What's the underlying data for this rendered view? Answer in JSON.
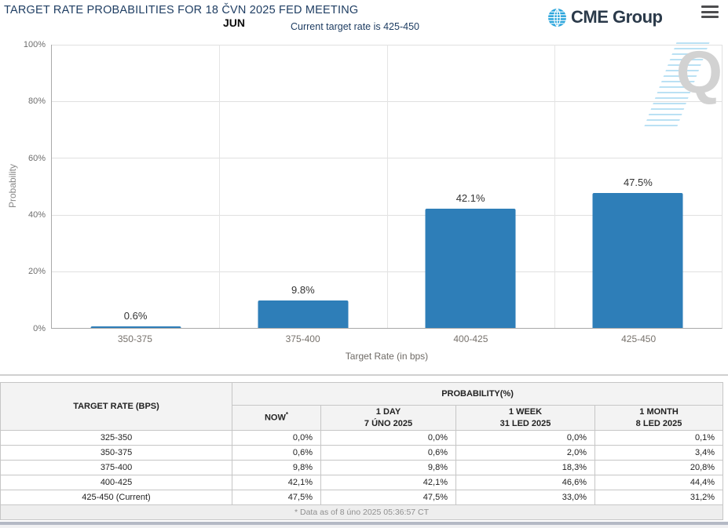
{
  "header": {
    "title": "TARGET RATE PROBABILITIES FOR 18 ČVN 2025 FED MEETING",
    "meeting_month": "JUN",
    "current_rate_note": "Current target rate is 425-450",
    "logo_text": "CME Group"
  },
  "chart_data": {
    "type": "bar",
    "title": "Target rate probabilities for 18 ČVN 2025 Fed meeting",
    "categories": [
      "350-375",
      "375-400",
      "400-425",
      "425-450"
    ],
    "values": [
      0.6,
      9.8,
      42.1,
      47.5
    ],
    "bar_labels": [
      "0.6%",
      "9.8%",
      "42.1%",
      "47.5%"
    ],
    "xlabel": "Target Rate (in bps)",
    "ylabel": "Probability",
    "ylim": [
      0,
      100
    ],
    "yticks": [
      "0%",
      "20%",
      "40%",
      "60%",
      "80%",
      "100%"
    ],
    "grid": true,
    "legend": false,
    "bar_color": "#2e7eb8"
  },
  "table": {
    "rate_header": "TARGET RATE (BPS)",
    "group_header": "PROBABILITY(%)",
    "columns": [
      {
        "label": "NOW",
        "sup": "*",
        "sub": ""
      },
      {
        "label": "1 DAY",
        "sub": "7 ÚNO 2025"
      },
      {
        "label": "1 WEEK",
        "sub": "31 LED 2025"
      },
      {
        "label": "1 MONTH",
        "sub": "8 LED 2025"
      }
    ],
    "rows": [
      {
        "rate": "325-350",
        "now": "0,0%",
        "day": "0,0%",
        "week": "0,0%",
        "month": "0,1%"
      },
      {
        "rate": "350-375",
        "now": "0,6%",
        "day": "0,6%",
        "week": "2,0%",
        "month": "3,4%"
      },
      {
        "rate": "375-400",
        "now": "9,8%",
        "day": "9,8%",
        "week": "18,3%",
        "month": "20,8%"
      },
      {
        "rate": "400-425",
        "now": "42,1%",
        "day": "42,1%",
        "week": "46,6%",
        "month": "44,4%"
      },
      {
        "rate": "425-450 (Current)",
        "now": "47,5%",
        "day": "47,5%",
        "week": "33,0%",
        "month": "31,2%"
      }
    ],
    "footnote": "* Data as of 8 úno 2025 05:36:57 CT"
  }
}
